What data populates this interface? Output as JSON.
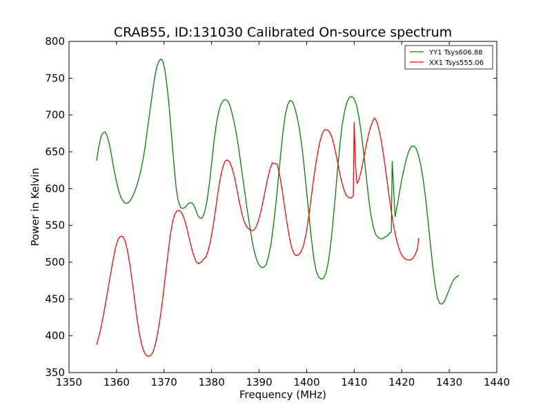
{
  "chart_data": {
    "type": "line",
    "title": "CRAB55, ID:131030 Calibrated On-source spectrum",
    "xlabel": "Frequency (MHz)",
    "ylabel": "Power in Kelvin",
    "xlim": [
      1350,
      1440
    ],
    "ylim": [
      350,
      800
    ],
    "xticks": [
      1350,
      1360,
      1370,
      1380,
      1390,
      1400,
      1410,
      1420,
      1430,
      1440
    ],
    "yticks": [
      350,
      400,
      450,
      500,
      550,
      600,
      650,
      700,
      750,
      800
    ],
    "grid": false,
    "legend_position": "top-right",
    "series": [
      {
        "name": "YY1 Tsys606.88",
        "color": "#008000",
        "points": [
          [
            1355.8,
            638
          ],
          [
            1356.3,
            658
          ],
          [
            1356.8,
            672
          ],
          [
            1357.2,
            676
          ],
          [
            1357.6,
            677
          ],
          [
            1358.0,
            672
          ],
          [
            1358.5,
            660
          ],
          [
            1359.0,
            643
          ],
          [
            1359.5,
            625
          ],
          [
            1360.0,
            609
          ],
          [
            1360.5,
            596
          ],
          [
            1361.0,
            587
          ],
          [
            1361.5,
            582
          ],
          [
            1362.0,
            580
          ],
          [
            1362.5,
            581
          ],
          [
            1363.0,
            585
          ],
          [
            1363.5,
            591
          ],
          [
            1364.0,
            599
          ],
          [
            1364.5,
            609
          ],
          [
            1365.0,
            621
          ],
          [
            1365.5,
            637
          ],
          [
            1366.0,
            656
          ],
          [
            1366.5,
            681
          ],
          [
            1367.0,
            704
          ],
          [
            1367.5,
            728
          ],
          [
            1368.0,
            750
          ],
          [
            1368.5,
            766
          ],
          [
            1369.0,
            774
          ],
          [
            1369.4,
            776
          ],
          [
            1369.8,
            772
          ],
          [
            1370.2,
            760
          ],
          [
            1370.6,
            740
          ],
          [
            1371.0,
            716
          ],
          [
            1371.4,
            686
          ],
          [
            1371.8,
            654
          ],
          [
            1372.2,
            624
          ],
          [
            1372.6,
            598
          ],
          [
            1373.0,
            583
          ],
          [
            1373.5,
            574
          ],
          [
            1374.0,
            573
          ],
          [
            1374.5,
            575
          ],
          [
            1375.0,
            579
          ],
          [
            1375.5,
            581
          ],
          [
            1376.0,
            580
          ],
          [
            1376.5,
            574
          ],
          [
            1377.0,
            565
          ],
          [
            1377.5,
            560
          ],
          [
            1378.0,
            560
          ],
          [
            1378.5,
            567
          ],
          [
            1379.0,
            582
          ],
          [
            1379.5,
            605
          ],
          [
            1380.0,
            634
          ],
          [
            1380.5,
            664
          ],
          [
            1381.0,
            688
          ],
          [
            1381.5,
            705
          ],
          [
            1382.0,
            715
          ],
          [
            1382.5,
            720
          ],
          [
            1383.0,
            721
          ],
          [
            1383.5,
            718
          ],
          [
            1384.0,
            710
          ],
          [
            1384.5,
            697
          ],
          [
            1385.0,
            682
          ],
          [
            1385.5,
            663
          ],
          [
            1386.0,
            641
          ],
          [
            1386.5,
            617
          ],
          [
            1387.0,
            594
          ],
          [
            1387.5,
            571
          ],
          [
            1388.0,
            550
          ],
          [
            1388.5,
            530
          ],
          [
            1389.0,
            514
          ],
          [
            1389.5,
            503
          ],
          [
            1390.0,
            496
          ],
          [
            1390.5,
            493
          ],
          [
            1391.0,
            493
          ],
          [
            1391.5,
            497
          ],
          [
            1392.0,
            508
          ],
          [
            1392.5,
            525
          ],
          [
            1393.0,
            549
          ],
          [
            1393.5,
            578
          ],
          [
            1394.0,
            611
          ],
          [
            1394.5,
            645
          ],
          [
            1395.0,
            676
          ],
          [
            1395.5,
            700
          ],
          [
            1396.0,
            714
          ],
          [
            1396.5,
            720
          ],
          [
            1397.0,
            718
          ],
          [
            1397.5,
            710
          ],
          [
            1398.0,
            697
          ],
          [
            1398.5,
            680
          ],
          [
            1399.0,
            657
          ],
          [
            1399.5,
            628
          ],
          [
            1400.0,
            596
          ],
          [
            1400.5,
            563
          ],
          [
            1401.0,
            532
          ],
          [
            1401.5,
            505
          ],
          [
            1402.0,
            488
          ],
          [
            1402.5,
            480
          ],
          [
            1403.0,
            477
          ],
          [
            1403.5,
            478
          ],
          [
            1404.0,
            484
          ],
          [
            1404.5,
            498
          ],
          [
            1405.0,
            521
          ],
          [
            1405.5,
            552
          ],
          [
            1406.0,
            588
          ],
          [
            1406.5,
            626
          ],
          [
            1407.0,
            660
          ],
          [
            1407.5,
            688
          ],
          [
            1408.0,
            706
          ],
          [
            1408.5,
            718
          ],
          [
            1409.0,
            724
          ],
          [
            1409.5,
            725
          ],
          [
            1410.0,
            722
          ],
          [
            1410.5,
            713
          ],
          [
            1411.0,
            697
          ],
          [
            1411.5,
            675
          ],
          [
            1412.0,
            648
          ],
          [
            1412.5,
            618
          ],
          [
            1413.0,
            589
          ],
          [
            1413.5,
            565
          ],
          [
            1414.0,
            548
          ],
          [
            1414.5,
            538
          ],
          [
            1415.0,
            534
          ],
          [
            1415.5,
            532
          ],
          [
            1416.0,
            532
          ],
          [
            1416.5,
            534
          ],
          [
            1417.0,
            536
          ],
          [
            1417.5,
            540
          ],
          [
            1417.8,
            541
          ],
          [
            1418.0,
            637
          ],
          [
            1418.3,
            600
          ],
          [
            1418.6,
            562
          ],
          [
            1419.0,
            575
          ],
          [
            1419.5,
            594
          ],
          [
            1420.0,
            612
          ],
          [
            1420.5,
            627
          ],
          [
            1421.0,
            641
          ],
          [
            1421.5,
            651
          ],
          [
            1422.0,
            657
          ],
          [
            1422.5,
            658
          ],
          [
            1423.0,
            655
          ],
          [
            1423.5,
            646
          ],
          [
            1424.0,
            632
          ],
          [
            1424.5,
            613
          ],
          [
            1425.0,
            588
          ],
          [
            1425.5,
            558
          ],
          [
            1426.0,
            526
          ],
          [
            1426.5,
            496
          ],
          [
            1427.0,
            470
          ],
          [
            1427.5,
            452
          ],
          [
            1428.0,
            444
          ],
          [
            1428.5,
            443
          ],
          [
            1429.0,
            447
          ],
          [
            1429.5,
            455
          ],
          [
            1430.0,
            463
          ],
          [
            1430.5,
            471
          ],
          [
            1431.0,
            477
          ],
          [
            1431.5,
            480
          ],
          [
            1432.0,
            482
          ]
        ]
      },
      {
        "name": "XX1 Tsys555.06",
        "color": "#ff0000",
        "points": [
          [
            1355.8,
            388
          ],
          [
            1356.3,
            399
          ],
          [
            1356.8,
            413
          ],
          [
            1357.3,
            430
          ],
          [
            1357.8,
            448
          ],
          [
            1358.3,
            467
          ],
          [
            1358.8,
            486
          ],
          [
            1359.3,
            504
          ],
          [
            1359.8,
            520
          ],
          [
            1360.3,
            531
          ],
          [
            1360.8,
            535
          ],
          [
            1361.3,
            535
          ],
          [
            1361.8,
            529
          ],
          [
            1362.3,
            516
          ],
          [
            1362.8,
            497
          ],
          [
            1363.3,
            474
          ],
          [
            1363.8,
            449
          ],
          [
            1364.3,
            424
          ],
          [
            1364.8,
            403
          ],
          [
            1365.3,
            388
          ],
          [
            1365.8,
            378
          ],
          [
            1366.3,
            373
          ],
          [
            1366.8,
            372
          ],
          [
            1367.3,
            374
          ],
          [
            1367.8,
            380
          ],
          [
            1368.3,
            392
          ],
          [
            1368.8,
            409
          ],
          [
            1369.3,
            430
          ],
          [
            1369.8,
            455
          ],
          [
            1370.3,
            482
          ],
          [
            1370.8,
            510
          ],
          [
            1371.3,
            536
          ],
          [
            1371.8,
            555
          ],
          [
            1372.3,
            566
          ],
          [
            1372.8,
            570
          ],
          [
            1373.3,
            570
          ],
          [
            1373.8,
            566
          ],
          [
            1374.3,
            558
          ],
          [
            1374.8,
            546
          ],
          [
            1375.3,
            532
          ],
          [
            1375.8,
            519
          ],
          [
            1376.3,
            508
          ],
          [
            1376.8,
            500
          ],
          [
            1377.3,
            498
          ],
          [
            1377.8,
            500
          ],
          [
            1378.3,
            504
          ],
          [
            1378.8,
            507
          ],
          [
            1379.3,
            516
          ],
          [
            1379.8,
            530
          ],
          [
            1380.3,
            548
          ],
          [
            1380.8,
            570
          ],
          [
            1381.3,
            593
          ],
          [
            1381.8,
            613
          ],
          [
            1382.3,
            628
          ],
          [
            1382.8,
            637
          ],
          [
            1383.3,
            639
          ],
          [
            1383.8,
            636
          ],
          [
            1384.3,
            628
          ],
          [
            1384.8,
            616
          ],
          [
            1385.3,
            600
          ],
          [
            1385.8,
            583
          ],
          [
            1386.3,
            568
          ],
          [
            1386.8,
            556
          ],
          [
            1387.3,
            549
          ],
          [
            1387.8,
            545
          ],
          [
            1388.3,
            543
          ],
          [
            1388.8,
            543
          ],
          [
            1389.3,
            547
          ],
          [
            1389.8,
            555
          ],
          [
            1390.3,
            567
          ],
          [
            1390.8,
            582
          ],
          [
            1391.3,
            598
          ],
          [
            1391.8,
            614
          ],
          [
            1392.3,
            627
          ],
          [
            1392.8,
            635
          ],
          [
            1393.3,
            634
          ],
          [
            1393.8,
            633
          ],
          [
            1394.3,
            619
          ],
          [
            1394.8,
            600
          ],
          [
            1395.3,
            578
          ],
          [
            1395.8,
            556
          ],
          [
            1396.3,
            536
          ],
          [
            1396.8,
            521
          ],
          [
            1397.3,
            512
          ],
          [
            1397.8,
            509
          ],
          [
            1398.3,
            510
          ],
          [
            1398.8,
            514
          ],
          [
            1399.3,
            522
          ],
          [
            1399.8,
            536
          ],
          [
            1400.3,
            556
          ],
          [
            1400.8,
            580
          ],
          [
            1401.3,
            605
          ],
          [
            1401.8,
            628
          ],
          [
            1402.3,
            648
          ],
          [
            1402.8,
            664
          ],
          [
            1403.3,
            675
          ],
          [
            1403.8,
            680
          ],
          [
            1404.3,
            680
          ],
          [
            1404.8,
            677
          ],
          [
            1405.3,
            670
          ],
          [
            1405.8,
            658
          ],
          [
            1406.3,
            643
          ],
          [
            1406.8,
            626
          ],
          [
            1407.3,
            611
          ],
          [
            1407.8,
            599
          ],
          [
            1408.3,
            591
          ],
          [
            1408.8,
            588
          ],
          [
            1409.3,
            587
          ],
          [
            1409.8,
            590
          ],
          [
            1410.0,
            690
          ],
          [
            1410.3,
            630
          ],
          [
            1410.6,
            607
          ],
          [
            1411.0,
            612
          ],
          [
            1411.5,
            625
          ],
          [
            1412.0,
            641
          ],
          [
            1412.5,
            658
          ],
          [
            1413.0,
            673
          ],
          [
            1413.5,
            685
          ],
          [
            1414.0,
            693
          ],
          [
            1414.3,
            696
          ],
          [
            1414.8,
            690
          ],
          [
            1415.3,
            678
          ],
          [
            1415.8,
            661
          ],
          [
            1416.3,
            640
          ],
          [
            1416.8,
            616
          ],
          [
            1417.3,
            592
          ],
          [
            1417.8,
            569
          ],
          [
            1418.3,
            549
          ],
          [
            1418.8,
            533
          ],
          [
            1419.3,
            521
          ],
          [
            1419.8,
            512
          ],
          [
            1420.3,
            507
          ],
          [
            1420.8,
            504
          ],
          [
            1421.3,
            503
          ],
          [
            1421.8,
            503
          ],
          [
            1422.3,
            505
          ],
          [
            1422.8,
            510
          ],
          [
            1423.3,
            518
          ],
          [
            1423.6,
            533
          ]
        ]
      }
    ]
  }
}
